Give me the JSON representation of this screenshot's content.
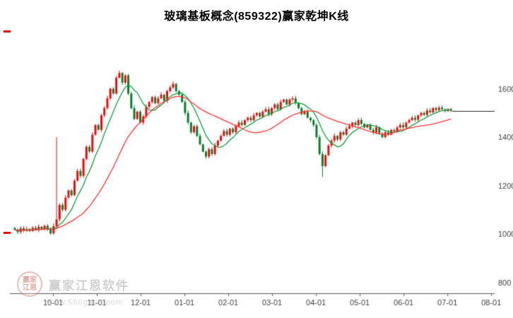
{
  "page": {
    "title": "玻璃基板概念(859322)赢家乾坤K线"
  },
  "chart_data": {
    "type": "candlestick",
    "title": "玻璃基板概念(859322)赢家乾坤K线",
    "x_tick_labels": [
      "10-01",
      "11-01",
      "12-01",
      "01-01",
      "02-01",
      "03-01",
      "04-01",
      "05-01",
      "06-01",
      "07-01",
      "08-01"
    ],
    "y_tick_labels": [
      1600,
      1400,
      1200,
      1000,
      800
    ],
    "ylim": [
      755,
      1835
    ],
    "grid": "off",
    "open_first": 1025,
    "closes": [
      1018,
      1008,
      1024,
      1014,
      1020,
      1012,
      1026,
      1016,
      1030,
      1022,
      1034,
      1018,
      1002,
      1032,
      1060,
      1120,
      1100,
      1150,
      1180,
      1160,
      1220,
      1260,
      1240,
      1310,
      1360,
      1340,
      1410,
      1450,
      1430,
      1490,
      1520,
      1560,
      1600,
      1580,
      1645,
      1665,
      1625,
      1655,
      1580,
      1520,
      1475,
      1505,
      1460,
      1485,
      1525,
      1545,
      1565,
      1540,
      1560,
      1575,
      1550,
      1590,
      1605,
      1620,
      1590,
      1575,
      1545,
      1500,
      1460,
      1420,
      1445,
      1405,
      1370,
      1340,
      1320,
      1350,
      1330,
      1365,
      1385,
      1405,
      1425,
      1410,
      1435,
      1420,
      1445,
      1460,
      1450,
      1470,
      1480,
      1470,
      1490,
      1500,
      1485,
      1505,
      1515,
      1495,
      1520,
      1535,
      1515,
      1545,
      1555,
      1535,
      1555,
      1560,
      1540,
      1520,
      1495,
      1505,
      1480,
      1470,
      1450,
      1400,
      1330,
      1280,
      1325,
      1365,
      1385,
      1405,
      1390,
      1420,
      1410,
      1435,
      1445,
      1460,
      1450,
      1470,
      1455,
      1440,
      1450,
      1430,
      1420,
      1440,
      1415,
      1400,
      1420,
      1410,
      1430,
      1425,
      1440,
      1450,
      1440,
      1460,
      1470,
      1480,
      1472,
      1490,
      1500,
      1492,
      1510,
      1502,
      1520,
      1512,
      1522,
      1515,
      1508,
      1515,
      1508
    ],
    "wick_overrides": [
      {
        "index": 14,
        "high": 1400
      },
      {
        "index": 103,
        "low": 1235
      }
    ],
    "last_price": 1508,
    "up_color": "#e60c0c",
    "down_color": "#0d7a2e",
    "ma_lines": [
      {
        "name": "fast-ma",
        "window": 8,
        "color": "#129b3e"
      },
      {
        "name": "slow-ma",
        "window": 24,
        "color": "#ff3030"
      }
    ],
    "axis_color": "#555555",
    "label_color": "#3c3c3c",
    "last_price_line_color": "#222222",
    "background": "#ffffff",
    "x_tick_start_frac": 0.089,
    "x_tick_step_frac": 0.0904,
    "candle_start_frac": 0.01,
    "candle_end_frac": 0.91
  },
  "watermark": {
    "name": "赢家江恩软件",
    "url": "www.550gann.com",
    "logo_text_top": "赢家",
    "logo_text_bottom": "江恩"
  }
}
